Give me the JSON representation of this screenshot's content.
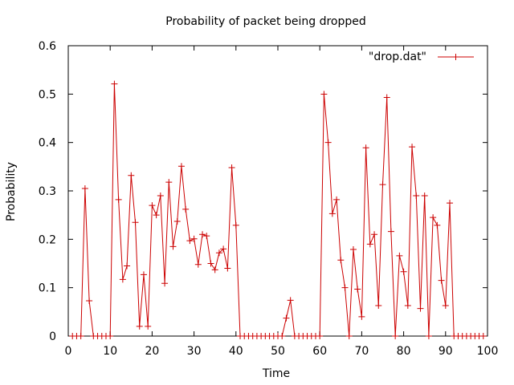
{
  "chart_data": {
    "type": "line",
    "title": "Probability of packet being dropped",
    "xlabel": "Time",
    "ylabel": "Probability",
    "xlim": [
      0,
      100
    ],
    "ylim": [
      0,
      0.6
    ],
    "xticks": [
      0,
      10,
      20,
      30,
      40,
      50,
      60,
      70,
      80,
      90,
      100
    ],
    "xtick_labels": [
      "0",
      "10",
      "20",
      "30",
      "40",
      "50",
      "60",
      "70",
      "80",
      "90",
      "100"
    ],
    "yticks": [
      0,
      0.1,
      0.2,
      0.3,
      0.4,
      0.5,
      0.6
    ],
    "ytick_labels": [
      "0",
      "0.1",
      "0.2",
      "0.3",
      "0.4",
      "0.5",
      "0.6"
    ],
    "grid": false,
    "legend_position": "top-right",
    "series": [
      {
        "name": "\"drop.dat\"",
        "color": "#cc0000",
        "marker": "plus",
        "x": [
          1,
          2,
          3,
          4,
          5,
          6,
          7,
          8,
          9,
          10,
          11,
          12,
          13,
          14,
          15,
          16,
          17,
          18,
          19,
          20,
          21,
          22,
          23,
          24,
          25,
          26,
          27,
          28,
          29,
          30,
          31,
          32,
          33,
          34,
          35,
          36,
          37,
          38,
          39,
          40,
          41,
          42,
          43,
          44,
          45,
          46,
          47,
          48,
          49,
          50,
          51,
          52,
          53,
          54,
          55,
          56,
          57,
          58,
          59,
          60,
          61,
          62,
          63,
          64,
          65,
          66,
          67,
          68,
          69,
          70,
          71,
          72,
          73,
          74,
          75,
          76,
          77,
          78,
          79,
          80,
          81,
          82,
          83,
          84,
          85,
          86,
          87,
          88,
          89,
          90,
          91,
          92,
          93,
          94,
          95,
          96,
          97,
          98,
          99
        ],
        "y": [
          0,
          0,
          0,
          0.305,
          0.073,
          0,
          0,
          0,
          0,
          0,
          0.521,
          0.282,
          0.117,
          0.145,
          0.332,
          0.235,
          0.02,
          0.127,
          0.02,
          0.27,
          0.25,
          0.29,
          0.109,
          0.318,
          0.185,
          0.237,
          0.351,
          0.262,
          0.197,
          0.201,
          0.148,
          0.21,
          0.207,
          0.15,
          0.137,
          0.172,
          0.18,
          0.14,
          0.348,
          0.229,
          0,
          0,
          0,
          0,
          0,
          0,
          0,
          0,
          0,
          0,
          0,
          0.037,
          0.074,
          0,
          0,
          0,
          0,
          0,
          0,
          0,
          0.5,
          0.4,
          0.253,
          0.282,
          0.157,
          0.1,
          0,
          0.179,
          0.097,
          0.04,
          0.389,
          0.19,
          0.21,
          0.063,
          0.313,
          0.493,
          0.216,
          0,
          0.166,
          0.133,
          0.063,
          0.391,
          0.29,
          0.057,
          0.29,
          0,
          0.245,
          0.229,
          0.115,
          0.063,
          0.275,
          0,
          0,
          0,
          0,
          0,
          0,
          0,
          0
        ]
      }
    ]
  }
}
